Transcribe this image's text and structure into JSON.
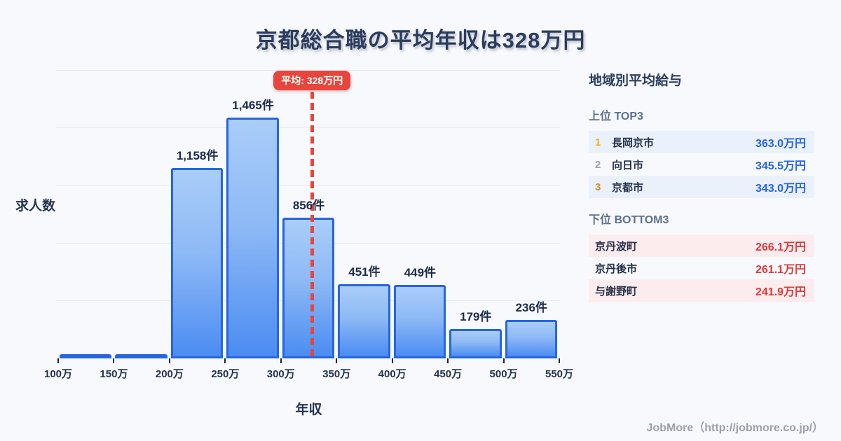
{
  "page": {
    "title": "京都総合職の平均年収は328万円",
    "footer": "JobMore（http://jobmore.co.jp/）",
    "background": "#f7f9fc"
  },
  "chart_data": {
    "type": "bar",
    "title": "京都総合職の平均年収は328万円",
    "xlabel": "年収",
    "ylabel": "求人数",
    "x_ticks": [
      "100万",
      "150万",
      "200万",
      "250万",
      "300万",
      "350万",
      "400万",
      "450万",
      "500万",
      "550万"
    ],
    "x_range": [
      100,
      550
    ],
    "bin_width": 50,
    "ylim": [
      0,
      1750
    ],
    "grid_step": 350,
    "grid": "on",
    "bins": [
      {
        "range": "100万-150万",
        "value": 13,
        "label": ""
      },
      {
        "range": "150万-200万",
        "value": 21,
        "label": ""
      },
      {
        "range": "200万-250万",
        "value": 1158,
        "label": "1,158件"
      },
      {
        "range": "250万-300万",
        "value": 1465,
        "label": "1,465件"
      },
      {
        "range": "300万-350万",
        "value": 856,
        "label": "856件"
      },
      {
        "range": "350万-400万",
        "value": 451,
        "label": "451件"
      },
      {
        "range": "400万-450万",
        "value": 449,
        "label": "449件"
      },
      {
        "range": "450万-500万",
        "value": 179,
        "label": "179件"
      },
      {
        "range": "500万-550万",
        "value": 236,
        "label": "236件"
      }
    ],
    "average": {
      "value": 328,
      "label": "平均: 328万円"
    },
    "colors": {
      "bar_fill_top": "#aacdf8",
      "bar_fill_bottom": "#4b8cf2",
      "bar_border": "#2565e2",
      "average_line": "#e8453c",
      "grid": "#e7ebf2",
      "title_text": "#2c3c5c",
      "background": "#f7f9fc"
    }
  },
  "sidebar": {
    "heading": "地域別平均給与",
    "top3": {
      "heading": "上位 TOP3",
      "value_color": "#2563eb",
      "rank_colors": [
        "#f0ad1f",
        "#98a2b0",
        "#e2862c"
      ],
      "stripe_color": "#eaf1fb",
      "rows": [
        {
          "rank": "1",
          "name": "長岡京市",
          "value": "363.0万円"
        },
        {
          "rank": "2",
          "name": "向日市",
          "value": "345.5万円"
        },
        {
          "rank": "3",
          "name": "京都市",
          "value": "343.0万円"
        }
      ]
    },
    "bottom3": {
      "heading": "下位 BOTTOM3",
      "value_color": "#e03a3a",
      "stripe_color": "#fdecee",
      "rows": [
        {
          "name": "京丹波町",
          "value": "266.1万円"
        },
        {
          "name": "京丹後市",
          "value": "261.1万円"
        },
        {
          "name": "与謝野町",
          "value": "241.9万円"
        }
      ]
    }
  }
}
